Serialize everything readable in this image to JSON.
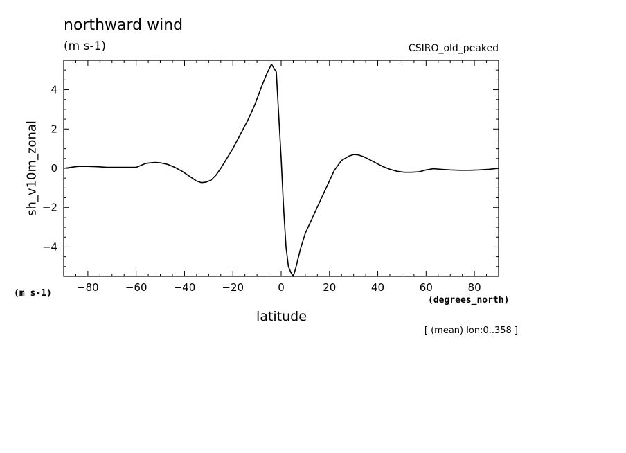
{
  "chart_data": {
    "type": "line",
    "title": "northward wind",
    "units": "(m s-1)",
    "model_label": "CSIRO_old_peaked",
    "ylabel": "sh_v10m_zonal",
    "y_units_label": "(m s-1)",
    "xlabel": "latitude",
    "x_units_label": "(degrees_north)",
    "footnote": "[ (mean) lon:0..358 ]",
    "xlim": [
      -90,
      90
    ],
    "ylim": [
      -5.5,
      5.5
    ],
    "x_ticks": [
      -80,
      -60,
      -40,
      -20,
      0,
      20,
      40,
      60,
      80
    ],
    "x_tick_labels": [
      "−80",
      "−60",
      "−40",
      "−20",
      "0",
      "20",
      "40",
      "60",
      "80"
    ],
    "y_ticks": [
      -4,
      -2,
      0,
      2,
      4
    ],
    "y_tick_labels": [
      "−4",
      "−2",
      "0",
      "2",
      "4"
    ],
    "grid": false,
    "series": [
      {
        "x": [
          -90,
          -87,
          -84,
          -80,
          -76,
          -72,
          -68,
          -64,
          -60,
          -58,
          -56,
          -54,
          -52,
          -50,
          -47,
          -44,
          -41,
          -38,
          -35,
          -33,
          -31,
          -29,
          -27,
          -25,
          -23,
          -20,
          -17,
          -14,
          -11,
          -8,
          -6,
          -4,
          -2,
          0,
          1,
          2,
          3,
          4,
          5,
          6,
          8,
          10,
          13,
          16,
          19,
          22,
          25,
          28,
          30,
          32,
          34,
          36,
          38,
          40,
          42,
          45,
          48,
          51,
          54,
          57,
          60,
          63,
          66,
          70,
          74,
          78,
          82,
          86,
          90
        ],
        "y": [
          0.0,
          0.05,
          0.1,
          0.1,
          0.08,
          0.05,
          0.05,
          0.05,
          0.05,
          0.15,
          0.25,
          0.28,
          0.3,
          0.28,
          0.2,
          0.05,
          -0.15,
          -0.4,
          -0.65,
          -0.73,
          -0.7,
          -0.6,
          -0.35,
          0.0,
          0.4,
          1.0,
          1.7,
          2.4,
          3.2,
          4.2,
          4.8,
          5.3,
          4.9,
          0.5,
          -2.0,
          -4.0,
          -5.0,
          -5.3,
          -5.5,
          -5.1,
          -4.1,
          -3.3,
          -2.5,
          -1.7,
          -0.9,
          -0.1,
          0.4,
          0.62,
          0.7,
          0.68,
          0.6,
          0.48,
          0.35,
          0.22,
          0.1,
          -0.05,
          -0.15,
          -0.2,
          -0.2,
          -0.18,
          -0.08,
          -0.02,
          -0.05,
          -0.08,
          -0.1,
          -0.1,
          -0.08,
          -0.05,
          0.0
        ]
      }
    ]
  },
  "colors": {
    "line": "#000000",
    "background": "#ffffff"
  }
}
